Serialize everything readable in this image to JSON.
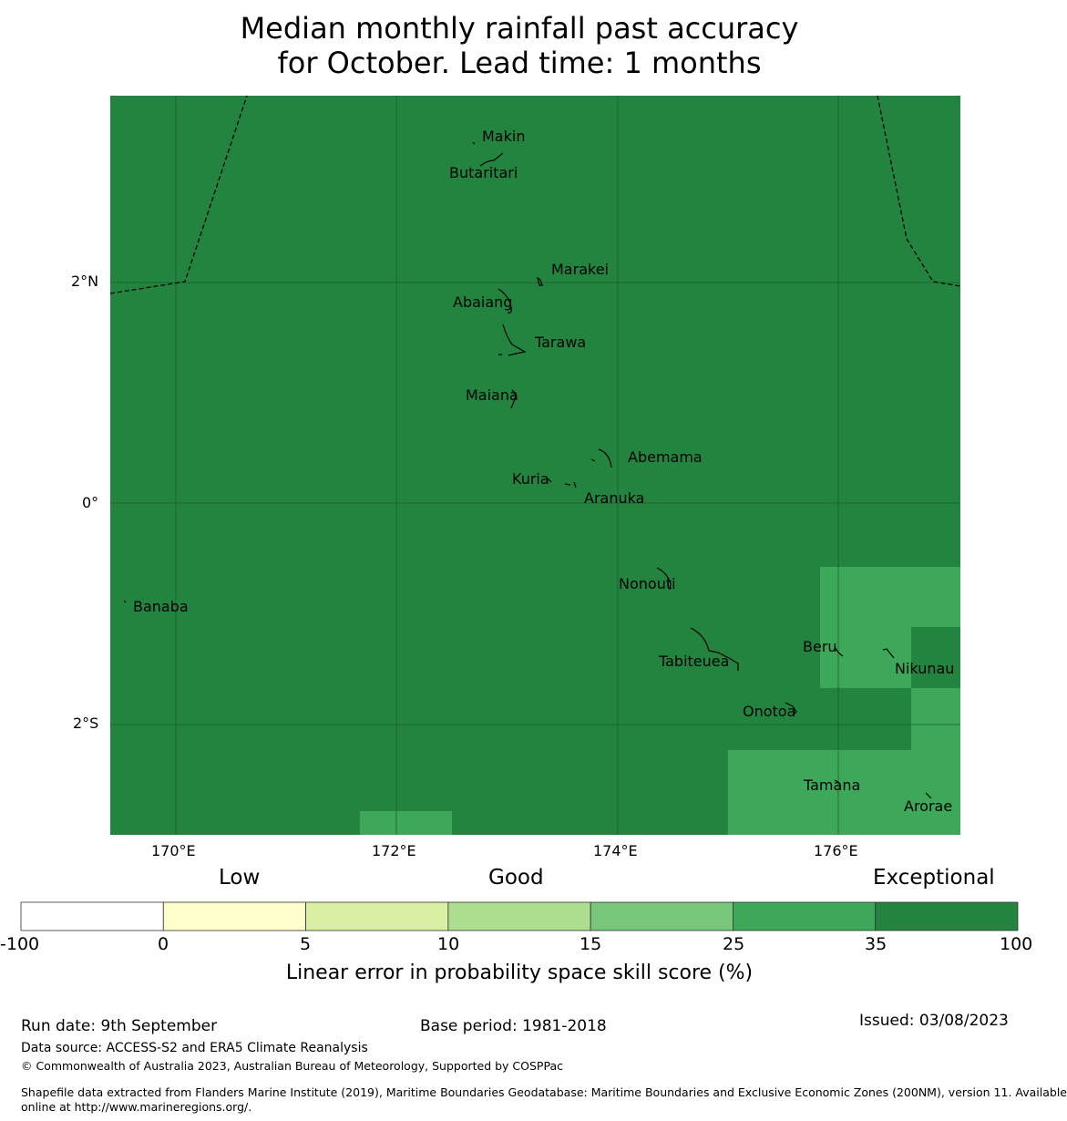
{
  "title": {
    "line1": "Median monthly rainfall past accuracy",
    "line2": "for October. Lead time: 1 months"
  },
  "map": {
    "background_color": "#23843f",
    "lighter_cell_color": "#3ea85a",
    "lat_labels": [
      "2°N",
      "0°",
      "2°S"
    ],
    "lon_labels": [
      "170°E",
      "172°E",
      "174°E",
      "176°E"
    ],
    "islands": [
      {
        "name": "Makin"
      },
      {
        "name": "Butaritari"
      },
      {
        "name": "Marakei"
      },
      {
        "name": "Abaiang"
      },
      {
        "name": "Tarawa"
      },
      {
        "name": "Maiana"
      },
      {
        "name": "Abemama"
      },
      {
        "name": "Kuria"
      },
      {
        "name": "Aranuka"
      },
      {
        "name": "Nonouti"
      },
      {
        "name": "Banaba"
      },
      {
        "name": "Beru"
      },
      {
        "name": "Nikunau"
      },
      {
        "name": "Tabiteuea"
      },
      {
        "name": "Onotoa"
      },
      {
        "name": "Tamana"
      },
      {
        "name": "Arorae"
      }
    ]
  },
  "legend": {
    "categories": [
      "Low",
      "Good",
      "Exceptional"
    ],
    "ticks": [
      "-100",
      "0",
      "5",
      "10",
      "15",
      "25",
      "35",
      "100"
    ],
    "colors": [
      "#ffffff",
      "#ffffcc",
      "#d9f0a3",
      "#addd8e",
      "#78c679",
      "#3ea85a",
      "#23843f"
    ],
    "label": "Linear error in probability space skill score (%)"
  },
  "footer": {
    "run_date": "Run date: 9th September",
    "base_period": "Base period: 1981-2018",
    "issued": "Issued: 03/08/2023",
    "data_source": "Data source: ACCESS-S2 and ERA5 Climate Reanalysis",
    "copyright": "© Commonwealth of Australia 2023, Australian Bureau of Meteorology, Supported by COSPPac",
    "shapefile_line1": "Shapefile data extracted from Flanders Marine Institute (2019), Maritime Boundaries Geodatabase: Maritime Boundaries and Exclusive Economic Zones (200NM), version 11. Available",
    "shapefile_line2": "online at http://www.marineregions.org/."
  }
}
